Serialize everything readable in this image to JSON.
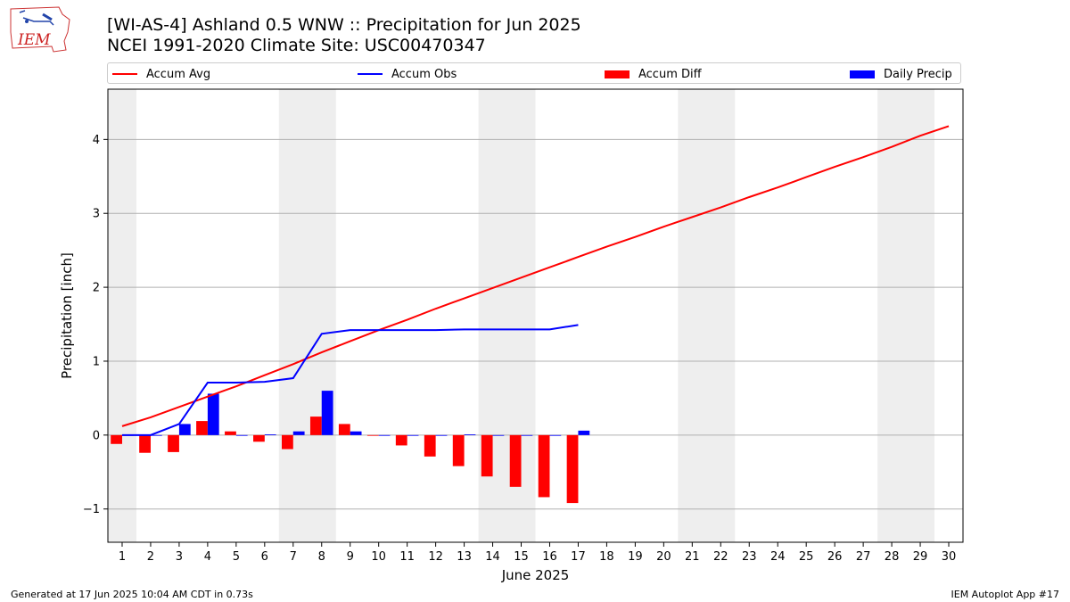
{
  "header": {
    "logo_text": "IEM",
    "title_line1": "[WI-AS-4] Ashland 0.5 WNW :: Precipitation for Jun 2025",
    "title_line2": "NCEI 1991-2020 Climate Site: USC00470347"
  },
  "legend": {
    "placement": "top",
    "items": [
      {
        "label": "Accum Avg",
        "kind": "line",
        "color": "#ff0000"
      },
      {
        "label": "Accum Obs",
        "kind": "line",
        "color": "#0000ff"
      },
      {
        "label": "Accum Diff",
        "kind": "bar",
        "color": "#ff0000"
      },
      {
        "label": "Daily Precip",
        "kind": "bar",
        "color": "#0000ff"
      }
    ]
  },
  "footer": {
    "left": "Generated at 17 Jun 2025 10:04 AM CDT in 0.73s",
    "right": "IEM Autoplot App #17"
  },
  "chart_data": {
    "type": "bar",
    "xlabel": "June 2025",
    "ylabel": "Precipitation [inch]",
    "xlim": [
      0.5,
      30.5
    ],
    "ylim": [
      -1.45,
      4.68
    ],
    "yticks": [
      -1,
      0,
      1,
      2,
      3,
      4
    ],
    "ytick_labels": [
      "−1",
      "0",
      "1",
      "2",
      "3",
      "4"
    ],
    "grid": "horizontal",
    "weekend_shading": [
      [
        0.5,
        1.5
      ],
      [
        6.5,
        8.5
      ],
      [
        13.5,
        15.5
      ],
      [
        20.5,
        22.5
      ],
      [
        27.5,
        29.5
      ]
    ],
    "days": [
      1,
      2,
      3,
      4,
      5,
      6,
      7,
      8,
      9,
      10,
      11,
      12,
      13,
      14,
      15,
      16,
      17,
      18,
      19,
      20,
      21,
      22,
      23,
      24,
      25,
      26,
      27,
      28,
      29,
      30
    ],
    "series": [
      {
        "name": "Accum Avg",
        "kind": "line",
        "color": "#ff0000",
        "values": [
          0.12,
          0.24,
          0.38,
          0.52,
          0.66,
          0.81,
          0.96,
          1.12,
          1.27,
          1.42,
          1.56,
          1.71,
          1.85,
          1.99,
          2.13,
          2.27,
          2.41,
          2.55,
          2.68,
          2.82,
          2.95,
          3.08,
          3.22,
          3.35,
          3.49,
          3.63,
          3.76,
          3.9,
          4.05,
          4.18
        ]
      },
      {
        "name": "Accum Obs",
        "kind": "line",
        "color": "#0000ff",
        "values": [
          0.0,
          0.0,
          0.15,
          0.71,
          0.71,
          0.72,
          0.77,
          1.37,
          1.42,
          1.42,
          1.42,
          1.42,
          1.43,
          1.43,
          1.43,
          1.43,
          1.49
        ]
      },
      {
        "name": "Accum Diff",
        "kind": "bar",
        "color": "#ff0000",
        "values": [
          -0.12,
          -0.24,
          -0.23,
          0.19,
          0.05,
          -0.09,
          -0.19,
          0.25,
          0.15,
          0.0,
          -0.14,
          -0.29,
          -0.42,
          -0.56,
          -0.7,
          -0.84,
          -0.92
        ]
      },
      {
        "name": "Daily Precip",
        "kind": "bar",
        "color": "#0000ff",
        "values": [
          0.0,
          0.0,
          0.15,
          0.56,
          0.0,
          0.01,
          0.05,
          0.6,
          0.05,
          0.0,
          0.0,
          0.0,
          0.01,
          0.0,
          0.0,
          0.0,
          0.06
        ]
      }
    ]
  }
}
